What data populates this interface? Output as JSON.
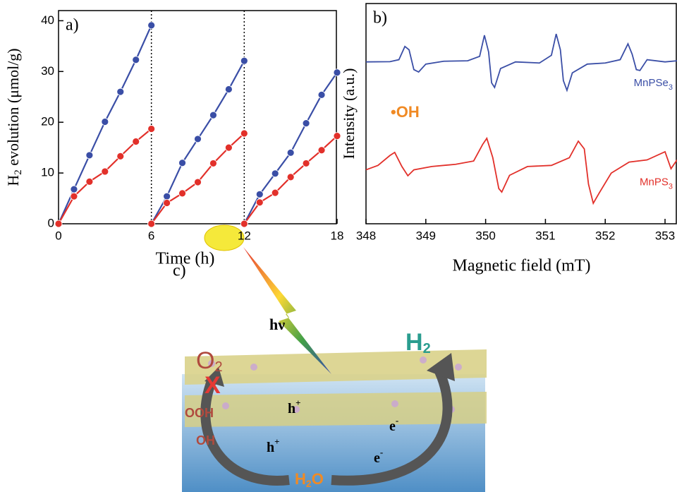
{
  "chart_data": [
    {
      "type": "line",
      "panel": "a)",
      "xlabel": "Time (h)",
      "ylabel": [
        "H",
        "2",
        " evolution (μmol/g)"
      ],
      "xlim": [
        0,
        18
      ],
      "ylim": [
        0,
        42
      ],
      "xticks": [
        0,
        6,
        12,
        18
      ],
      "yticks": [
        0,
        10,
        20,
        30,
        40
      ],
      "vlines": [
        6,
        12
      ],
      "series": [
        {
          "color": "#3a4ea6",
          "segments": [
            {
              "x": [
                0,
                1,
                2,
                3,
                4,
                5,
                6
              ],
              "values": [
                0,
                6.8,
                13.5,
                20.1,
                26,
                32.3,
                39.1
              ]
            },
            {
              "x": [
                6,
                7,
                8,
                9,
                10,
                11,
                12
              ],
              "values": [
                0,
                5.4,
                12,
                16.7,
                21.4,
                26.5,
                32.1
              ]
            },
            {
              "x": [
                12,
                13,
                14,
                15,
                16,
                17,
                18
              ],
              "values": [
                0,
                5.8,
                9.9,
                14,
                19.8,
                25.4,
                29.8
              ]
            }
          ]
        },
        {
          "color": "#e2302a",
          "segments": [
            {
              "x": [
                0,
                1,
                2,
                3,
                4,
                5,
                6
              ],
              "values": [
                0,
                5.4,
                8.3,
                10.3,
                13.3,
                16.2,
                18.7
              ]
            },
            {
              "x": [
                6,
                7,
                8,
                9,
                10,
                11,
                12
              ],
              "values": [
                0,
                4.1,
                6,
                8.2,
                11.9,
                15,
                17.8
              ]
            },
            {
              "x": [
                12,
                13,
                14,
                15,
                16,
                17,
                18
              ],
              "values": [
                0,
                4.2,
                6.1,
                9.2,
                11.9,
                14.5,
                17.3
              ]
            }
          ]
        }
      ]
    },
    {
      "type": "line",
      "panel": "b)",
      "xlabel": "Magnetic field (mT)",
      "ylabel": "Intensity (a.u.)",
      "annotation": "•OH",
      "xlim": [
        348,
        353.2
      ],
      "ylim": [
        0,
        100
      ],
      "xticks": [
        348,
        349,
        350,
        351,
        352,
        353
      ],
      "series": [
        {
          "name": [
            "MnPSe",
            "3"
          ],
          "color": "#3a4ea6",
          "x": [
            348.0,
            348.4,
            348.55,
            348.65,
            348.72,
            348.8,
            348.88,
            349.0,
            349.3,
            349.7,
            349.9,
            349.98,
            350.05,
            350.1,
            350.15,
            350.25,
            350.5,
            350.9,
            351.1,
            351.18,
            351.25,
            351.3,
            351.36,
            351.45,
            351.7,
            352.0,
            352.25,
            352.38,
            352.45,
            352.52,
            352.58,
            352.7,
            353.0,
            353.2
          ],
          "values": [
            73.5,
            73.6,
            74.5,
            80.5,
            79,
            70,
            68.9,
            72.5,
            73.8,
            74,
            76,
            85.6,
            78,
            64,
            61.9,
            70.5,
            73.5,
            73,
            76.5,
            86.2,
            79,
            65,
            60.6,
            68.5,
            72.5,
            73,
            74.5,
            81.7,
            77,
            70,
            69.6,
            74.5,
            73.5,
            74
          ]
        },
        {
          "name": [
            "MnPS",
            "3"
          ],
          "color": "#e2302a",
          "x": [
            348.0,
            348.2,
            348.4,
            348.48,
            348.6,
            348.7,
            348.8,
            349.1,
            349.5,
            349.8,
            349.95,
            350.02,
            350.12,
            350.22,
            350.27,
            350.4,
            350.7,
            351.1,
            351.4,
            351.55,
            351.65,
            351.72,
            351.8,
            351.9,
            352.1,
            352.4,
            352.7,
            353.0,
            353.1,
            353.2
          ],
          "values": [
            24.5,
            26.5,
            31,
            32.4,
            26,
            21.8,
            24.5,
            26,
            27,
            28.5,
            36,
            38.8,
            30,
            16,
            14.4,
            22,
            26,
            26.5,
            30,
            37.5,
            34,
            18,
            9.3,
            14,
            23,
            28,
            29,
            32.7,
            25,
            29
          ]
        }
      ]
    }
  ],
  "diagram": {
    "panel": "c)",
    "light": "hν",
    "o2": [
      "O",
      "2"
    ],
    "h2": [
      "H",
      "2"
    ],
    "h1": [
      "h",
      "+"
    ],
    "h2plus": [
      "h",
      "+"
    ],
    "e1": [
      "e",
      "-"
    ],
    "e2": [
      "e",
      "-"
    ],
    "ooh": "OOH",
    "oh": "OH",
    "water": [
      "H",
      "2",
      "O"
    ]
  }
}
